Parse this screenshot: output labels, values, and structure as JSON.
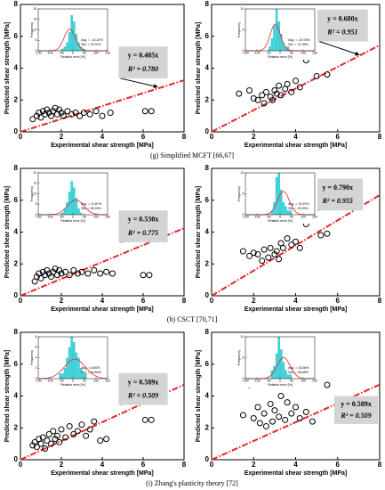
{
  "chart_data": [
    {
      "type": "scatter",
      "xlabel": "Experimental shear strength [MPa]",
      "ylabel": "Predicted shear strength [MPa]",
      "xlim": [
        0,
        8
      ],
      "ylim": [
        0,
        8
      ],
      "xticks": [
        0,
        2,
        4,
        6,
        8
      ],
      "yticks": [
        0,
        2,
        4,
        6,
        8
      ],
      "x": [
        0.6,
        0.8,
        0.9,
        1.0,
        1.1,
        1.2,
        1.3,
        1.4,
        1.5,
        1.6,
        1.7,
        1.8,
        1.9,
        2.0,
        2.1,
        2.3,
        2.5,
        2.7,
        2.9,
        3.1,
        3.4,
        3.7,
        4.0,
        4.4,
        6.1,
        6.4
      ],
      "values": [
        0.8,
        1.0,
        1.2,
        0.9,
        1.3,
        1.1,
        1.4,
        1.2,
        1.0,
        1.3,
        1.5,
        1.1,
        1.4,
        1.2,
        1.0,
        1.3,
        1.1,
        1.2,
        1.0,
        1.2,
        1.1,
        1.3,
        1.0,
        1.2,
        1.3,
        1.3
      ],
      "fit": {
        "slope": 0.405,
        "label": "y = 0.405x",
        "r2_label": "R² = 0.780",
        "color": "#e8262a"
      },
      "inset": {
        "xlabel": "Relative error [%]",
        "ylabel": "Frequency",
        "xlim": [
          -150,
          150
        ],
        "xticks": [
          -150,
          -100,
          -50,
          0,
          50,
          100,
          150
        ],
        "ylim": [
          0,
          20
        ],
        "yticks": [
          0,
          5,
          10,
          15,
          20
        ],
        "bins": [
          -60,
          -50,
          -40,
          -30,
          -20,
          -10,
          0,
          10,
          20,
          30,
          40,
          50,
          60
        ],
        "counts": [
          0,
          1,
          2,
          4,
          9,
          17,
          14,
          8,
          4,
          2,
          1,
          0
        ],
        "avg": -14.22,
        "std": 23.91,
        "avg_label": "Avg. = -14.22%",
        "std_label": "Std. = 23.91%",
        "color": "#3fd0d8"
      }
    },
    {
      "type": "scatter",
      "xlabel": "Experimental shear strength [MPa]",
      "ylabel": "Predicted shear strength [MPa]",
      "xlim": [
        0,
        8
      ],
      "ylim": [
        0,
        8
      ],
      "xticks": [
        0,
        2,
        4,
        6,
        8
      ],
      "yticks": [
        0,
        2,
        4,
        6,
        8
      ],
      "x": [
        1.3,
        1.8,
        2.0,
        2.2,
        2.4,
        2.5,
        2.6,
        2.8,
        2.9,
        3.0,
        3.1,
        3.2,
        3.3,
        3.5,
        3.6,
        3.8,
        4.0,
        4.2,
        4.5,
        5.0,
        5.5
      ],
      "values": [
        2.4,
        2.6,
        2.1,
        2.0,
        2.3,
        1.8,
        2.5,
        2.2,
        2.0,
        2.6,
        2.4,
        2.9,
        2.3,
        2.7,
        3.0,
        2.5,
        3.2,
        2.8,
        4.5,
        3.5,
        3.6
      ],
      "fit": {
        "slope": 0.68,
        "label": "y = 0.680x",
        "r2_label": "R² = 0.951",
        "color": "#e8262a"
      },
      "inset": {
        "xlabel": "Relative error [%]",
        "ylabel": "Frequency",
        "xlim": [
          -150,
          150
        ],
        "xticks": [
          -150,
          -100,
          -50,
          0,
          50,
          100,
          150
        ],
        "ylim": [
          0,
          10
        ],
        "yticks": [
          0,
          5,
          10
        ],
        "bins": [
          -60,
          -50,
          -40,
          -30,
          -20,
          -10,
          0,
          10,
          20,
          30,
          40,
          50,
          60
        ],
        "counts": [
          0,
          1,
          3,
          6,
          10,
          7,
          4,
          2,
          1,
          1,
          0,
          0
        ],
        "avg": -20.93,
        "std": 21.95,
        "avg_label": "Avg. = -20.93%",
        "std_label": "Std. = 21.95%",
        "color": "#3fd0d8"
      }
    },
    {
      "type": "scatter",
      "xlabel": "Experimental shear strength [MPa]",
      "ylabel": "Predicted shear strength [MPa]",
      "xlim": [
        0,
        8
      ],
      "ylim": [
        0,
        8
      ],
      "xticks": [
        0,
        2,
        4,
        6,
        8
      ],
      "yticks": [
        0,
        2,
        4,
        6,
        8
      ],
      "x": [
        0.7,
        0.8,
        0.9,
        1.0,
        1.1,
        1.2,
        1.3,
        1.4,
        1.5,
        1.6,
        1.7,
        1.8,
        1.9,
        2.0,
        2.2,
        2.4,
        2.6,
        2.8,
        3.0,
        3.3,
        3.6,
        3.9,
        4.2,
        4.5,
        6.0,
        6.3
      ],
      "values": [
        0.9,
        1.2,
        1.4,
        1.1,
        1.5,
        1.3,
        1.6,
        1.4,
        1.2,
        1.5,
        1.7,
        1.3,
        1.6,
        1.4,
        1.5,
        1.3,
        1.6,
        1.4,
        1.5,
        1.4,
        1.6,
        1.4,
        1.5,
        1.4,
        1.3,
        1.3
      ],
      "fit": {
        "slope": 0.53,
        "label": "y = 0.530x",
        "r2_label": "R² = 0.775",
        "color": "#e8262a"
      },
      "inset": {
        "xlabel": "Relative error [%]",
        "ylabel": "Frequency",
        "xlim": [
          -150,
          150
        ],
        "xticks": [
          -150,
          -100,
          -50,
          0,
          50,
          100,
          150
        ],
        "ylim": [
          0,
          20
        ],
        "yticks": [
          0,
          5,
          10,
          15,
          20
        ],
        "bins": [
          -60,
          -50,
          -40,
          -30,
          -20,
          -10,
          0,
          10,
          20,
          30,
          40,
          50,
          60
        ],
        "counts": [
          0,
          1,
          3,
          6,
          11,
          16,
          13,
          8,
          3,
          1,
          0,
          0
        ],
        "avg": 11.87,
        "std": 35.03,
        "avg_label": "Avg. = 11.87%",
        "std_label": "Std. = 35.03%",
        "color": "#3fd0d8"
      }
    },
    {
      "type": "scatter",
      "xlabel": "Experimental shear strength [MPa]",
      "ylabel": "Predicted shear strength [MPa]",
      "xlim": [
        0,
        8
      ],
      "ylim": [
        0,
        8
      ],
      "xticks": [
        0,
        2,
        4,
        6,
        8
      ],
      "yticks": [
        0,
        2,
        4,
        6,
        8
      ],
      "x": [
        1.5,
        1.8,
        2.0,
        2.2,
        2.4,
        2.5,
        2.7,
        2.8,
        3.0,
        3.1,
        3.2,
        3.3,
        3.4,
        3.6,
        3.8,
        4.0,
        4.2,
        4.5,
        5.2,
        5.5
      ],
      "values": [
        2.8,
        2.5,
        2.7,
        2.6,
        2.2,
        2.9,
        2.4,
        3.0,
        2.6,
        2.8,
        2.3,
        3.3,
        3.0,
        3.6,
        3.2,
        3.4,
        3.0,
        4.5,
        3.8,
        3.9
      ],
      "fit": {
        "slope": 0.79,
        "label": "y = 0.790x",
        "r2_label": "R² = 0.955",
        "color": "#e8262a"
      },
      "inset": {
        "xlabel": "Relative error [%]",
        "ylabel": "Frequency",
        "xlim": [
          -150,
          150
        ],
        "xticks": [
          -150,
          -100,
          -50,
          0,
          50,
          100,
          150
        ],
        "ylim": [
          0,
          10
        ],
        "yticks": [
          0,
          5,
          10
        ],
        "bins": [
          -60,
          -50,
          -40,
          -30,
          -20,
          -10,
          0,
          10,
          20,
          30,
          40,
          50,
          60
        ],
        "counts": [
          0,
          0,
          1,
          3,
          9,
          10,
          6,
          3,
          2,
          1,
          1,
          0
        ],
        "avg": 14.29,
        "std": 25.92,
        "avg_label": "Avg. = 14.29%",
        "std_label": "Std. = 25.92%",
        "color": "#3fd0d8"
      }
    },
    {
      "type": "scatter",
      "xlabel": "Experimental shear strength [MPa]",
      "ylabel": "Predicted shear strength [MPa]",
      "xlim": [
        0,
        8
      ],
      "ylim": [
        0,
        8
      ],
      "xticks": [
        0,
        2,
        4,
        6,
        8
      ],
      "yticks": [
        0,
        2,
        4,
        6,
        8
      ],
      "x": [
        0.6,
        0.7,
        0.8,
        0.9,
        1.0,
        1.1,
        1.2,
        1.3,
        1.4,
        1.5,
        1.6,
        1.7,
        1.8,
        1.9,
        2.0,
        2.2,
        2.4,
        2.6,
        2.8,
        3.0,
        3.2,
        3.4,
        3.6,
        3.9,
        4.2,
        6.1,
        6.4
      ],
      "values": [
        0.9,
        1.1,
        0.8,
        1.3,
        1.0,
        1.4,
        0.7,
        1.2,
        1.6,
        1.0,
        1.8,
        1.3,
        1.5,
        1.1,
        1.9,
        1.4,
        2.1,
        1.6,
        1.8,
        2.2,
        1.5,
        1.9,
        2.4,
        1.2,
        1.3,
        2.5,
        2.5
      ],
      "fit": {
        "slope": 0.589,
        "label": "y = 0.589x",
        "r2_label": "R² = 0.509",
        "color": "#e8262a"
      },
      "inset": {
        "xlabel": "Relative error [%]",
        "ylabel": "Frequency",
        "xlim": [
          -150,
          150
        ],
        "xticks": [
          -150,
          -100,
          -50,
          0,
          50,
          100,
          150
        ],
        "ylim": [
          0,
          8
        ],
        "yticks": [
          0,
          2,
          4,
          6,
          8
        ],
        "bins": [
          -60,
          -50,
          -40,
          -30,
          -20,
          -10,
          0,
          10,
          20,
          30,
          40,
          50,
          60
        ],
        "counts": [
          1,
          1,
          2,
          4,
          6,
          8,
          7,
          5,
          4,
          2,
          1,
          1
        ],
        "avg": 8.5,
        "std": 44.69,
        "avg_label": "Avg. = 8.50%",
        "std_label": "Std. = 44.69%",
        "color": "#3fd0d8"
      }
    },
    {
      "type": "scatter",
      "xlabel": "Experimental shear strength [MPa]",
      "ylabel": "Predicted shear strength [MPa]",
      "xlim": [
        0,
        8
      ],
      "ylim": [
        0,
        8
      ],
      "xticks": [
        0,
        2,
        4,
        6,
        8
      ],
      "yticks": [
        0,
        2,
        4,
        6,
        8
      ],
      "x": [
        1.5,
        1.8,
        2.0,
        2.2,
        2.3,
        2.5,
        2.6,
        2.8,
        2.9,
        3.0,
        3.2,
        3.3,
        3.5,
        3.6,
        3.8,
        4.0,
        4.2,
        4.5,
        4.8,
        5.5
      ],
      "values": [
        2.8,
        4.7,
        2.6,
        3.3,
        2.3,
        2.9,
        2.1,
        3.5,
        2.4,
        3.1,
        2.7,
        4.0,
        2.5,
        3.6,
        2.9,
        3.3,
        2.6,
        3.0,
        2.4,
        4.7
      ],
      "fit": {
        "slope": 0.589,
        "label": "y = 0.589x",
        "r2_label": "R² = 0.509",
        "color": "#e8262a"
      },
      "inset": {
        "xlabel": "Relative error [%]",
        "ylabel": "Frequency",
        "xlim": [
          -150,
          150
        ],
        "xticks": [
          -150,
          -100,
          -50,
          0,
          50,
          100,
          150
        ],
        "ylim": [
          0,
          10
        ],
        "yticks": [
          0,
          5,
          10
        ],
        "bins": [
          -60,
          -50,
          -40,
          -30,
          -20,
          -10,
          0,
          10,
          20,
          30,
          40,
          50,
          60
        ],
        "counts": [
          0,
          0,
          2,
          3,
          6,
          10,
          7,
          4,
          2,
          1,
          1,
          0
        ],
        "avg": 15.06,
        "std": 28.68,
        "avg_label": "Avg. = 15.06%",
        "std_label": "Std. = 28.68%",
        "color": "#3fd0d8"
      }
    }
  ],
  "captions": [
    "(g) Simplified MCFT [66,67]",
    "(h) CSCT [70,71]",
    "(i) Zhang's plasticity theory [72]"
  ]
}
